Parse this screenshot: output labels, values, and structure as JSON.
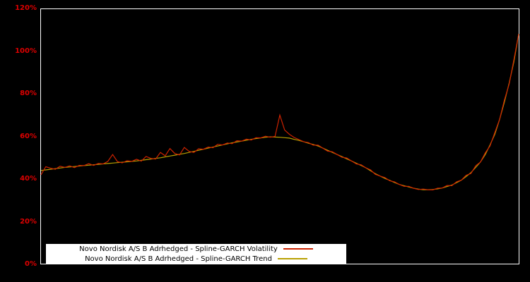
{
  "colors": {
    "background": "#000000",
    "axis_label": "#dd0000",
    "plot_border": "#ffffff",
    "volatility_line": "#cc2200",
    "trend_line": "#b8a000",
    "legend_bg": "#ffffff",
    "legend_text": "#000000"
  },
  "axis": {
    "y_ticks": [
      {
        "value": 0,
        "label": "0%"
      },
      {
        "value": 20,
        "label": "20%"
      },
      {
        "value": 40,
        "label": "40%"
      },
      {
        "value": 60,
        "label": "60%"
      },
      {
        "value": 80,
        "label": "80%"
      },
      {
        "value": 100,
        "label": "100%"
      },
      {
        "value": 120,
        "label": "120%"
      }
    ]
  },
  "legend": {
    "items": [
      {
        "role": "volatility",
        "label": "Novo Nordisk A/S B Adrhedged - Spline-GARCH Volatility"
      },
      {
        "role": "trend",
        "label": "Novo Nordisk A/S B Adrhedged - Spline-GARCH Trend"
      }
    ]
  },
  "chart_data": {
    "type": "line",
    "title": "",
    "xlabel": "",
    "ylabel": "",
    "y_unit": "%",
    "ylim": [
      0,
      120
    ],
    "x_range": [
      0,
      100
    ],
    "grid": false,
    "legend_position": "bottom-center",
    "series": [
      {
        "name": "Novo Nordisk A/S B Adrhedged - Spline-GARCH Trend",
        "role": "trend",
        "color": "#b8a000",
        "values": [
          44,
          44.3,
          44.6,
          44.9,
          45.2,
          45.5,
          45.7,
          45.9,
          46.1,
          46.3,
          46.5,
          46.7,
          46.9,
          47.1,
          47.3,
          47.5,
          47.7,
          47.9,
          48.1,
          48.3,
          48.5,
          48.8,
          49.1,
          49.4,
          49.7,
          50,
          50.4,
          50.8,
          51.2,
          51.6,
          52,
          52.5,
          53,
          53.5,
          54,
          54.5,
          55,
          55.5,
          56,
          56.5,
          57,
          57.4,
          57.8,
          58.2,
          58.6,
          59,
          59.3,
          59.6,
          59.8,
          59.7,
          59.6,
          59.4,
          59.2,
          58.6,
          58.1,
          57.5,
          56.8,
          56.2,
          55.5,
          54.5,
          53.5,
          52.5,
          51.5,
          50.5,
          49.5,
          48.5,
          47.4,
          46.4,
          45.3,
          43.9,
          42.5,
          41.4,
          40.3,
          39.4,
          38.4,
          37.5,
          36.9,
          36.3,
          35.7,
          35.3,
          35,
          35,
          35.1,
          35.4,
          35.8,
          36.5,
          37.2,
          38.3,
          39.5,
          41.2,
          43,
          45.5,
          48,
          51.5,
          56,
          61,
          68,
          76,
          85,
          95,
          108
        ]
      },
      {
        "name": "Novo Nordisk A/S B Adrhedged - Spline-GARCH Volatility",
        "role": "volatility",
        "color": "#cc2200",
        "values": [
          42,
          45.8,
          45.1,
          44.6,
          46.0,
          45.5,
          46.2,
          45.4,
          46.4,
          46.3,
          47.2,
          46.4,
          47.3,
          47.1,
          48.3,
          51.5,
          48.2,
          47.6,
          48.6,
          48.3,
          49.3,
          48.4,
          50.6,
          49.7,
          49.4,
          52.5,
          50.9,
          54.3,
          52.0,
          51.3,
          54.8,
          53.0,
          52.5,
          54.2,
          54.0,
          55.0,
          54.7,
          56.3,
          56.0,
          56.9,
          56.6,
          58.0,
          57.8,
          58.7,
          58.3,
          59.4,
          59.3,
          60.1,
          59.6,
          60.0,
          70.0,
          63.0,
          61.0,
          59.5,
          58.5,
          57.5,
          57.1,
          55.9,
          55.9,
          54.5,
          53.1,
          52.8,
          51.5,
          50.2,
          49.9,
          48.5,
          47.1,
          46.7,
          45.3,
          44.3,
          42.2,
          41.4,
          40.7,
          39.2,
          38.7,
          37.5,
          36.6,
          36.6,
          35.7,
          35.1,
          35.3,
          35,
          34.9,
          35.7,
          35.8,
          37.0,
          36.9,
          38.7,
          39.5,
          41.8,
          42.6,
          46.2,
          48,
          52.3,
          55.5,
          61.8,
          68,
          77,
          84.5,
          96,
          108
        ]
      }
    ]
  }
}
